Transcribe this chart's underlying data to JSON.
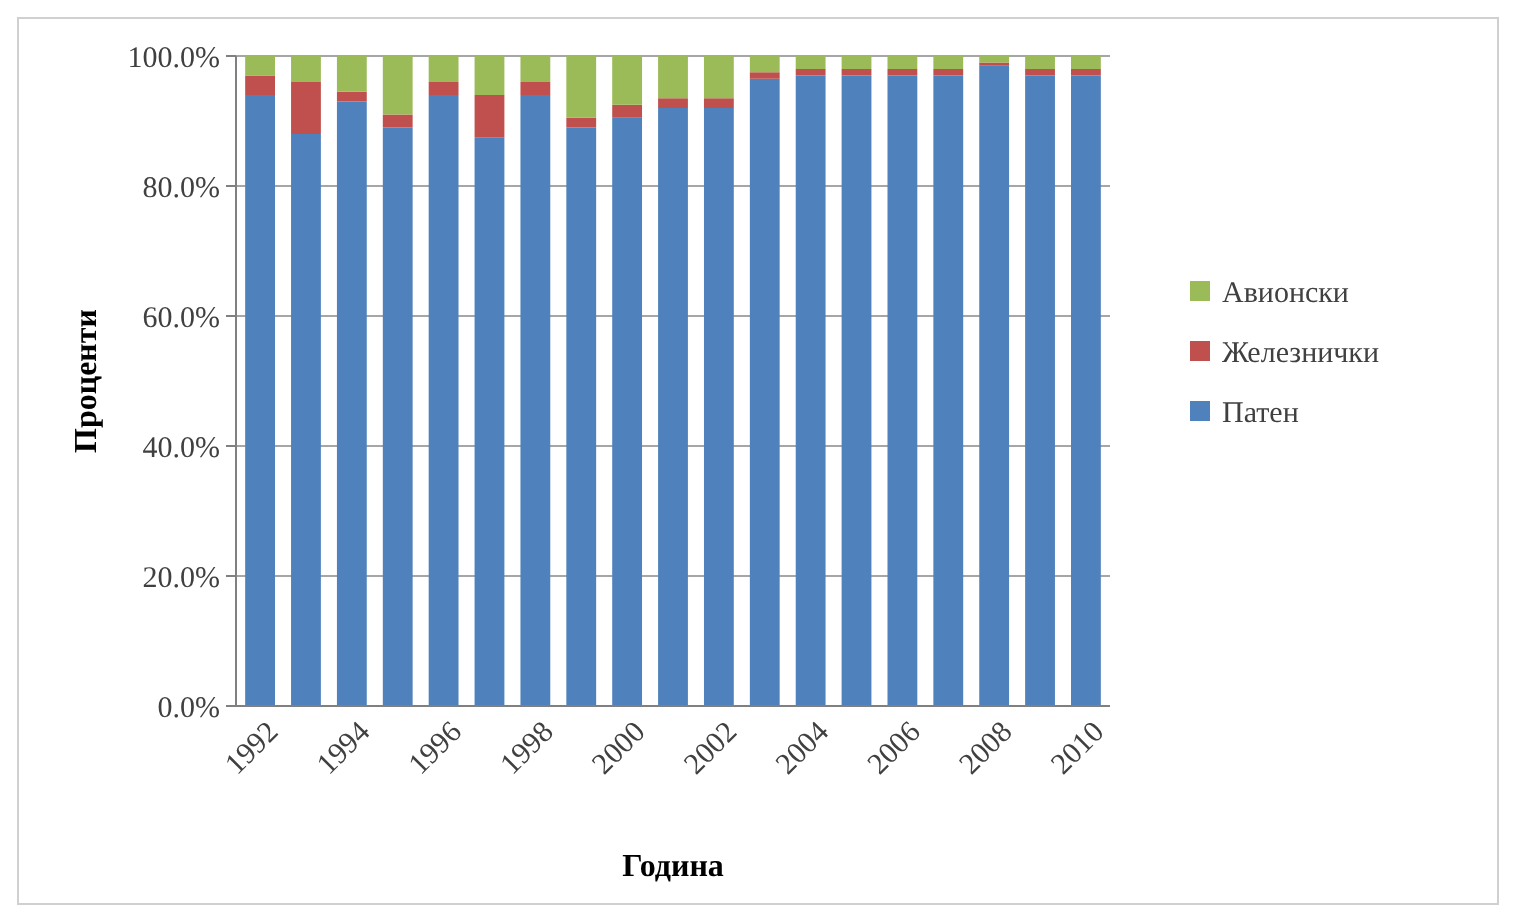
{
  "chart_data": {
    "type": "bar",
    "stacked": true,
    "xlabel": "Година",
    "ylabel": "Проценти",
    "categories": [
      "1992",
      null,
      "1994",
      null,
      "1996",
      null,
      "1998",
      null,
      "2000",
      null,
      "2002",
      null,
      "2004",
      null,
      "2006",
      null,
      "2008",
      null,
      "2010"
    ],
    "series": [
      {
        "name": "Патен",
        "color": "#4f81bd",
        "values": [
          94,
          88,
          93,
          89,
          94,
          87.5,
          94,
          89,
          90.5,
          92,
          92,
          96.5,
          97,
          97,
          97,
          97,
          98.5,
          97,
          97
        ]
      },
      {
        "name": "Железнички",
        "color": "#c0504d",
        "values": [
          3,
          8,
          1.5,
          2,
          2,
          6.5,
          2,
          1.5,
          2,
          1.5,
          1.5,
          1,
          1,
          1,
          1,
          1,
          0.5,
          1,
          1
        ]
      },
      {
        "name": "Авионски",
        "color": "#9bbb59",
        "values": [
          3,
          4,
          5.5,
          9,
          4,
          6,
          4,
          9.5,
          7.5,
          6.5,
          6.5,
          2.5,
          2,
          2,
          2,
          2,
          1,
          2,
          2
        ]
      }
    ],
    "ylim": [
      0,
      100
    ],
    "yticks": [
      {
        "value": 0,
        "label": "0.0%"
      },
      {
        "value": 20,
        "label": "20.0%"
      },
      {
        "value": 40,
        "label": "40.0%"
      },
      {
        "value": 60,
        "label": "60.0%"
      },
      {
        "value": 80,
        "label": "80.0%"
      },
      {
        "value": 100,
        "label": "100.0%"
      }
    ],
    "grid": "y",
    "legend": "right"
  }
}
